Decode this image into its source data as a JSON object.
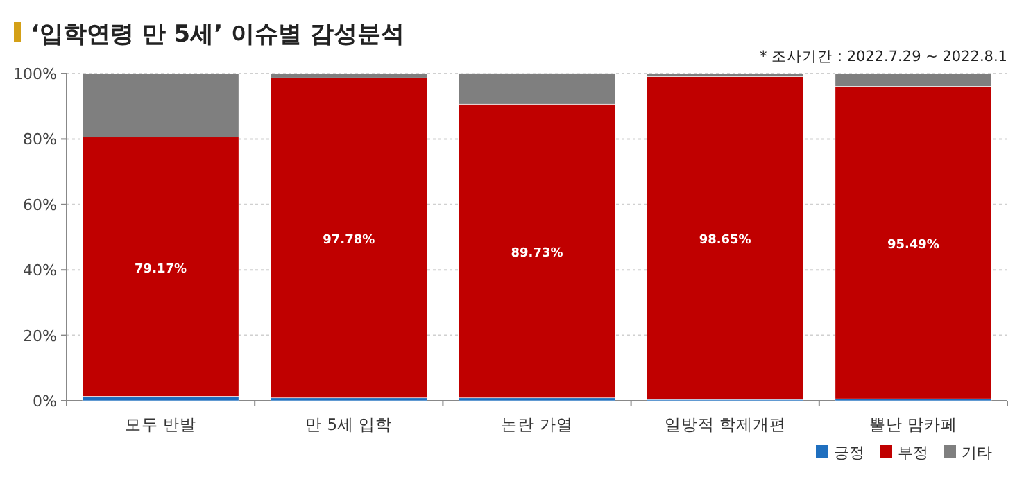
{
  "chart_data": {
    "type": "bar",
    "stacked": true,
    "title": "‘입학연령 만 5세’ 이슈별 감성분석",
    "annotations": [
      "* 조사기간 : 2022.7.29 ~ 2022.8.1"
    ],
    "categories": [
      "모두 반발",
      "만 5세 입학",
      "논란 가열",
      "일방적 학제개편",
      "뿔난 맘카페"
    ],
    "series": [
      {
        "name": "긍정",
        "color": "#1f6fbf",
        "values": [
          1.4,
          0.9,
          0.9,
          0.4,
          0.6
        ]
      },
      {
        "name": "부정",
        "color": "#c00000",
        "values": [
          79.17,
          97.78,
          89.73,
          98.65,
          95.49
        ],
        "value_labels": [
          "79.17%",
          "97.78%",
          "89.73%",
          "98.65%",
          "95.49%"
        ]
      },
      {
        "name": "기타",
        "color": "#7f7f7f",
        "values": [
          19.4,
          1.3,
          9.4,
          0.9,
          3.9
        ]
      }
    ],
    "ylim": [
      0,
      100
    ],
    "yticks": [
      {
        "value": 0,
        "label": "0%"
      },
      {
        "value": 20,
        "label": "20%"
      },
      {
        "value": 40,
        "label": "40%"
      },
      {
        "value": 60,
        "label": "60%"
      },
      {
        "value": 80,
        "label": "80%"
      },
      {
        "value": 100,
        "label": "100%"
      }
    ],
    "grid": "y",
    "legend": "bottom right"
  }
}
